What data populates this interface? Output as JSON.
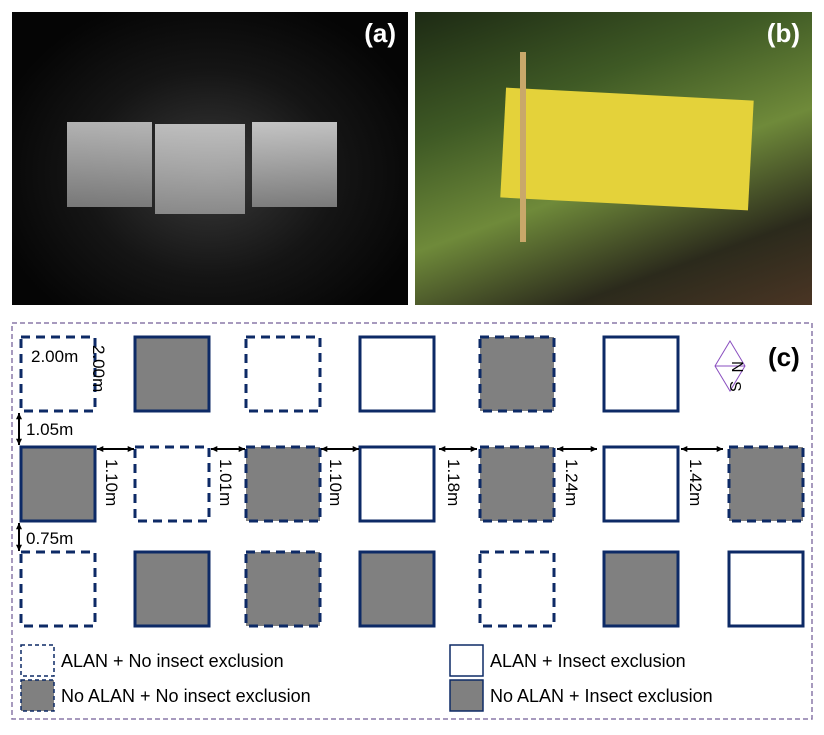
{
  "panels": {
    "a": "(a)",
    "b": "(b)",
    "c": "(c)"
  },
  "colors": {
    "stroke": "#0d2a66",
    "fill_no_alan": "#808080",
    "frame": "#8a78a8",
    "compass": "#8a4fc0"
  },
  "grid": [
    [
      "alan_no_excl",
      "noalan_excl",
      "alan_no_excl",
      "alan_excl",
      "noalan_no_excl",
      "alan_excl",
      "compass"
    ],
    [
      "noalan_excl",
      "alan_no_excl",
      "noalan_no_excl",
      "alan_excl",
      "noalan_no_excl",
      "alan_excl",
      "noalan_no_excl"
    ],
    [
      "alan_no_excl",
      "noalan_excl",
      "noalan_no_excl",
      "noalan_excl",
      "alan_no_excl",
      "noalan_excl",
      "alan_excl"
    ]
  ],
  "dimensions": {
    "width": "2.00m",
    "height": "2.00m",
    "row_gap_1": "1.05m",
    "row_gap_2": "0.75m",
    "col_gaps": [
      "1.10m",
      "1.01m",
      "1.10m",
      "1.18m",
      "1.24m",
      "1.42m"
    ]
  },
  "compass": {
    "n": "N",
    "s": "S"
  },
  "legend": [
    {
      "type": "alan_no_excl",
      "label": "ALAN + No insect exclusion"
    },
    {
      "type": "alan_excl",
      "label": "ALAN + Insect exclusion"
    },
    {
      "type": "noalan_no_excl",
      "label": "No ALAN + No insect exclusion"
    },
    {
      "type": "noalan_excl",
      "label": "No ALAN + Insect exclusion"
    }
  ]
}
